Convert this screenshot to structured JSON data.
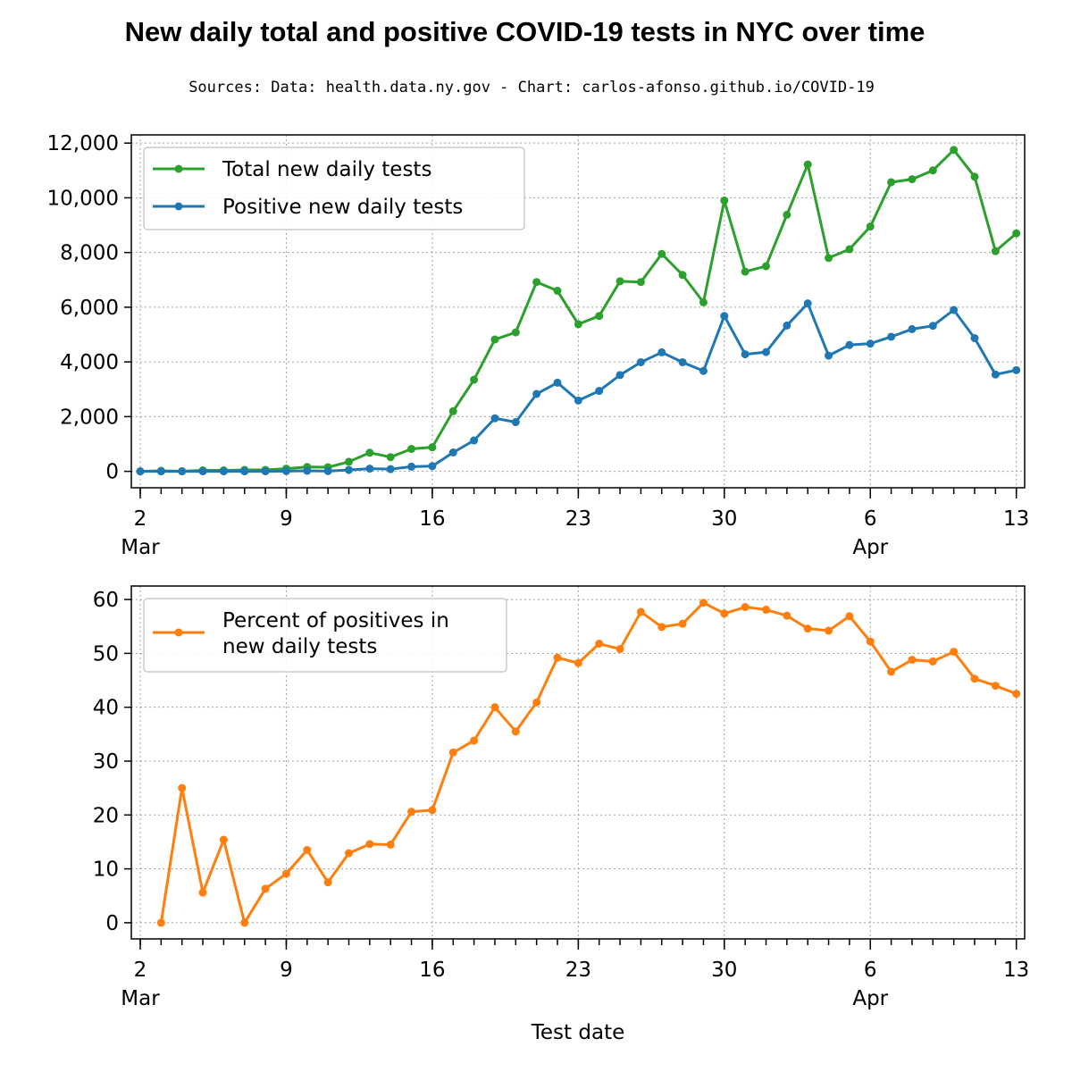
{
  "title": "New daily total and positive COVID-19 tests in NYC over time",
  "subtitle": "Sources: Data: health.data.ny.gov - Chart: carlos-afonso.github.io/COVID-19",
  "chart_data": [
    {
      "type": "line",
      "x": [
        "2020-03-02",
        "2020-03-03",
        "2020-03-04",
        "2020-03-05",
        "2020-03-06",
        "2020-03-07",
        "2020-03-08",
        "2020-03-09",
        "2020-03-10",
        "2020-03-11",
        "2020-03-12",
        "2020-03-13",
        "2020-03-14",
        "2020-03-15",
        "2020-03-16",
        "2020-03-17",
        "2020-03-18",
        "2020-03-19",
        "2020-03-20",
        "2020-03-21",
        "2020-03-22",
        "2020-03-23",
        "2020-03-24",
        "2020-03-25",
        "2020-03-26",
        "2020-03-27",
        "2020-03-28",
        "2020-03-29",
        "2020-03-30",
        "2020-03-31",
        "2020-04-01",
        "2020-04-02",
        "2020-04-03",
        "2020-04-04",
        "2020-04-05",
        "2020-04-06",
        "2020-04-07",
        "2020-04-08",
        "2020-04-09",
        "2020-04-10",
        "2020-04-11",
        "2020-04-12",
        "2020-04-13"
      ],
      "series": [
        {
          "name": "Total new daily tests",
          "color": "#2ca02c",
          "values": [
            0,
            20,
            5,
            35,
            35,
            55,
            55,
            100,
            160,
            150,
            350,
            680,
            520,
            820,
            880,
            2200,
            3350,
            4820,
            5080,
            6920,
            6600,
            5380,
            5680,
            6950,
            6920,
            7950,
            7180,
            6180,
            9900,
            7300,
            7500,
            9380,
            11220,
            7800,
            8120,
            8950,
            10570,
            10680,
            11000,
            11750,
            10770,
            8050,
            8700
          ]
        },
        {
          "name": "Positive new daily tests",
          "color": "#1f77b4",
          "values": [
            0,
            0,
            0,
            0,
            0,
            0,
            0,
            10,
            20,
            10,
            50,
            100,
            80,
            170,
            190,
            690,
            1130,
            1940,
            1800,
            2830,
            3240,
            2590,
            2940,
            3520,
            3990,
            4350,
            3990,
            3670,
            5680,
            4280,
            4360,
            5330,
            6140,
            4230,
            4620,
            4670,
            4920,
            5200,
            5320,
            5900,
            4870,
            3540,
            3700
          ]
        }
      ],
      "xticks": [
        {
          "date": "2020-03-02",
          "label": "2",
          "sublabel": "Mar"
        },
        {
          "date": "2020-03-09",
          "label": "9",
          "sublabel": ""
        },
        {
          "date": "2020-03-16",
          "label": "16",
          "sublabel": ""
        },
        {
          "date": "2020-03-23",
          "label": "23",
          "sublabel": ""
        },
        {
          "date": "2020-03-30",
          "label": "30",
          "sublabel": ""
        },
        {
          "date": "2020-04-06",
          "label": "6",
          "sublabel": "Apr"
        },
        {
          "date": "2020-04-13",
          "label": "13",
          "sublabel": ""
        }
      ],
      "yticks": [
        0,
        2000,
        4000,
        6000,
        8000,
        10000,
        12000
      ],
      "ytick_labels": [
        "0",
        "2,000",
        "4,000",
        "6,000",
        "8,000",
        "10,000",
        "12,000"
      ],
      "ylim": [
        -600,
        12300
      ],
      "grid": true,
      "legend": "top-left",
      "xlabel": "",
      "ylabel": ""
    },
    {
      "type": "line",
      "x": [
        "2020-03-03",
        "2020-03-04",
        "2020-03-05",
        "2020-03-06",
        "2020-03-07",
        "2020-03-08",
        "2020-03-09",
        "2020-03-10",
        "2020-03-11",
        "2020-03-12",
        "2020-03-13",
        "2020-03-14",
        "2020-03-15",
        "2020-03-16",
        "2020-03-17",
        "2020-03-18",
        "2020-03-19",
        "2020-03-20",
        "2020-03-21",
        "2020-03-22",
        "2020-03-23",
        "2020-03-24",
        "2020-03-25",
        "2020-03-26",
        "2020-03-27",
        "2020-03-28",
        "2020-03-29",
        "2020-03-30",
        "2020-03-31",
        "2020-04-01",
        "2020-04-02",
        "2020-04-03",
        "2020-04-04",
        "2020-04-05",
        "2020-04-06",
        "2020-04-07",
        "2020-04-08",
        "2020-04-09",
        "2020-04-10",
        "2020-04-11",
        "2020-04-12",
        "2020-04-13"
      ],
      "series": [
        {
          "name": "Percent of positives in new daily tests",
          "legend_lines": [
            "Percent of positives in",
            "new daily tests"
          ],
          "color": "#ff7f0e",
          "values": [
            0,
            25,
            5.6,
            15.4,
            0,
            6.3,
            9.1,
            13.5,
            7.5,
            12.9,
            14.6,
            14.5,
            20.6,
            20.9,
            31.6,
            33.8,
            40,
            35.5,
            40.9,
            49.2,
            48.2,
            51.8,
            50.8,
            57.7,
            54.9,
            55.5,
            59.4,
            57.4,
            58.6,
            58.1,
            57,
            54.6,
            54.2,
            56.9,
            52.2,
            46.6,
            48.8,
            48.5,
            50.3,
            45.3,
            44,
            42.5
          ]
        }
      ],
      "xticks": [
        {
          "date": "2020-03-02",
          "label": "2",
          "sublabel": "Mar"
        },
        {
          "date": "2020-03-09",
          "label": "9",
          "sublabel": ""
        },
        {
          "date": "2020-03-16",
          "label": "16",
          "sublabel": ""
        },
        {
          "date": "2020-03-23",
          "label": "23",
          "sublabel": ""
        },
        {
          "date": "2020-03-30",
          "label": "30",
          "sublabel": ""
        },
        {
          "date": "2020-04-06",
          "label": "6",
          "sublabel": "Apr"
        },
        {
          "date": "2020-04-13",
          "label": "13",
          "sublabel": ""
        }
      ],
      "yticks": [
        0,
        10,
        20,
        30,
        40,
        50,
        60
      ],
      "ytick_labels": [
        "0",
        "10",
        "20",
        "30",
        "40",
        "50",
        "60"
      ],
      "ylim": [
        -3,
        62.5
      ],
      "grid": true,
      "legend": "top-left",
      "xlabel": "Test date",
      "ylabel": ""
    }
  ]
}
